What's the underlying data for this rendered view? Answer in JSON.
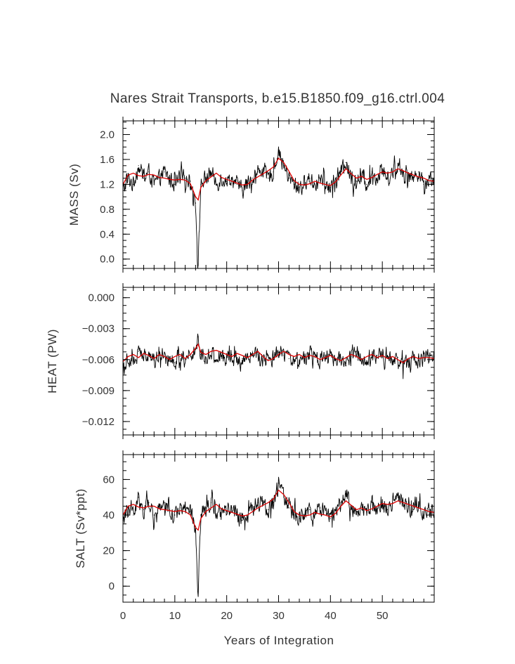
{
  "figure": {
    "title": "Nares Strait Transports, b.e15.B1850.f09_g16.ctrl.004",
    "xlabel": "Years of Integration",
    "colors": {
      "frame": "#000000",
      "raw": "#000000",
      "smooth": "#dd0000",
      "text": "#333333"
    }
  },
  "chart_data": [
    {
      "type": "line",
      "ylabel": "MASS (Sv)",
      "xlim": [
        0,
        60
      ],
      "ylim": [
        -0.15,
        2.22
      ],
      "xticks": [
        0,
        10,
        20,
        30,
        40,
        50
      ],
      "xtick_labels": [
        "0",
        "10",
        "20",
        "30",
        "40",
        "50"
      ],
      "yticks": [
        0.0,
        0.4,
        0.8,
        1.2,
        1.6,
        2.0
      ],
      "ytick_labels": [
        "0.0",
        "0.4",
        "0.8",
        "1.2",
        "1.6",
        "2.0"
      ],
      "series": [
        {
          "style": "monthly",
          "color": "#000000",
          "x": [
            0,
            1,
            2,
            3,
            4,
            5,
            6,
            7,
            8,
            9,
            10,
            11,
            12,
            13,
            14,
            14.5,
            15,
            16,
            17,
            18,
            19,
            20,
            21,
            22,
            23,
            24,
            25,
            26,
            27,
            28,
            29,
            30,
            31,
            32,
            33,
            34,
            35,
            36,
            37,
            38,
            39,
            40,
            41,
            42,
            43,
            44,
            45,
            46,
            47,
            48,
            49,
            50,
            51,
            52,
            53,
            54,
            55,
            56,
            57,
            58,
            59,
            60
          ],
          "y": [
            1.1,
            1.3,
            1.2,
            1.5,
            1.3,
            1.4,
            1.2,
            1.3,
            1.4,
            1.3,
            1.2,
            1.3,
            1.3,
            1.25,
            0.9,
            -0.15,
            1.2,
            1.3,
            1.4,
            1.2,
            1.3,
            1.25,
            1.3,
            1.2,
            1.1,
            1.2,
            1.3,
            1.4,
            1.45,
            1.3,
            1.4,
            1.75,
            1.5,
            1.3,
            1.2,
            1.15,
            1.2,
            1.3,
            1.2,
            1.3,
            1.2,
            1.15,
            1.3,
            1.4,
            1.55,
            1.3,
            1.25,
            1.3,
            1.2,
            1.4,
            1.3,
            1.45,
            1.3,
            1.4,
            1.5,
            1.4,
            1.35,
            1.3,
            1.4,
            1.2,
            1.3,
            1.25
          ]
        },
        {
          "style": "running mean",
          "color": "#dd0000",
          "x": [
            0,
            1,
            2,
            3,
            4,
            5,
            6,
            7,
            8,
            9,
            10,
            11,
            12,
            13,
            14,
            14.5,
            15,
            16,
            17,
            18,
            19,
            20,
            21,
            22,
            23,
            24,
            25,
            26,
            27,
            28,
            29,
            30,
            31,
            32,
            33,
            34,
            35,
            36,
            37,
            38,
            39,
            40,
            41,
            42,
            43,
            44,
            45,
            46,
            47,
            48,
            49,
            50,
            51,
            52,
            53,
            54,
            55,
            56,
            57,
            58,
            59,
            60
          ],
          "y": [
            1.2,
            1.35,
            1.38,
            1.34,
            1.33,
            1.36,
            1.35,
            1.31,
            1.3,
            1.28,
            1.27,
            1.28,
            1.27,
            1.21,
            1.0,
            0.95,
            1.15,
            1.26,
            1.32,
            1.38,
            1.31,
            1.28,
            1.25,
            1.22,
            1.19,
            1.2,
            1.27,
            1.32,
            1.37,
            1.42,
            1.48,
            1.62,
            1.55,
            1.41,
            1.26,
            1.2,
            1.19,
            1.21,
            1.25,
            1.22,
            1.2,
            1.18,
            1.24,
            1.35,
            1.45,
            1.37,
            1.3,
            1.33,
            1.28,
            1.31,
            1.36,
            1.4,
            1.38,
            1.4,
            1.45,
            1.42,
            1.38,
            1.35,
            1.32,
            1.3,
            1.26,
            1.25
          ]
        }
      ]
    },
    {
      "type": "line",
      "ylabel": "HEAT (PW)",
      "xlim": [
        0,
        60
      ],
      "ylim": [
        -0.0133,
        0.001
      ],
      "xticks": [
        0,
        10,
        20,
        30,
        40,
        50
      ],
      "xtick_labels": [
        "0",
        "10",
        "20",
        "30",
        "40",
        "50"
      ],
      "yticks": [
        -0.012,
        -0.009,
        -0.006,
        -0.003,
        0.0
      ],
      "ytick_labels": [
        "−0.012",
        "−0.009",
        "−0.006",
        "−0.003",
        "0.000"
      ],
      "series": [
        {
          "style": "monthly",
          "color": "#000000",
          "x": [
            0,
            1,
            2,
            3,
            4,
            5,
            6,
            7,
            8,
            9,
            10,
            11,
            12,
            13,
            14,
            14.5,
            15,
            16,
            17,
            18,
            19,
            20,
            21,
            22,
            23,
            24,
            25,
            26,
            27,
            28,
            29,
            30,
            31,
            32,
            33,
            34,
            35,
            36,
            37,
            38,
            39,
            40,
            41,
            42,
            43,
            44,
            45,
            46,
            47,
            48,
            49,
            50,
            51,
            52,
            53,
            54,
            55,
            56,
            57,
            58,
            59,
            60
          ],
          "y": [
            -0.0068,
            -0.0057,
            -0.0062,
            -0.0052,
            -0.0058,
            -0.0054,
            -0.0061,
            -0.0056,
            -0.0053,
            -0.0059,
            -0.0063,
            -0.0057,
            -0.006,
            -0.0055,
            -0.005,
            -0.0038,
            -0.0055,
            -0.0058,
            -0.0052,
            -0.006,
            -0.0056,
            -0.0058,
            -0.0055,
            -0.0061,
            -0.0059,
            -0.0057,
            -0.0052,
            -0.0055,
            -0.0061,
            -0.006,
            -0.0058,
            -0.0053,
            -0.0056,
            -0.0059,
            -0.006,
            -0.0062,
            -0.0057,
            -0.0055,
            -0.0058,
            -0.0061,
            -0.0059,
            -0.0056,
            -0.006,
            -0.0058,
            -0.0066,
            -0.0057,
            -0.0052,
            -0.0059,
            -0.0061,
            -0.0058,
            -0.0056,
            -0.0055,
            -0.0059,
            -0.006,
            -0.0058,
            -0.0062,
            -0.0059,
            -0.0057,
            -0.0061,
            -0.0058,
            -0.0056,
            -0.0057
          ]
        },
        {
          "style": "running mean",
          "color": "#dd0000",
          "x": [
            0,
            1,
            2,
            3,
            4,
            5,
            6,
            7,
            8,
            9,
            10,
            11,
            12,
            13,
            14,
            14.5,
            15,
            16,
            17,
            18,
            19,
            20,
            21,
            22,
            23,
            24,
            25,
            26,
            27,
            28,
            29,
            30,
            31,
            32,
            33,
            34,
            35,
            36,
            37,
            38,
            39,
            40,
            41,
            42,
            43,
            44,
            45,
            46,
            47,
            48,
            49,
            50,
            51,
            52,
            53,
            54,
            55,
            56,
            57,
            58,
            59,
            60
          ],
          "y": [
            -0.0062,
            -0.0057,
            -0.0055,
            -0.0058,
            -0.0054,
            -0.0056,
            -0.0059,
            -0.0055,
            -0.0057,
            -0.006,
            -0.0057,
            -0.0055,
            -0.0059,
            -0.0055,
            -0.0049,
            -0.0045,
            -0.0053,
            -0.0055,
            -0.0052,
            -0.0051,
            -0.0053,
            -0.0055,
            -0.0057,
            -0.0054,
            -0.0056,
            -0.0058,
            -0.0055,
            -0.0052,
            -0.0057,
            -0.0061,
            -0.0059,
            -0.0055,
            -0.0052,
            -0.0055,
            -0.0057,
            -0.0055,
            -0.0058,
            -0.0056,
            -0.0057,
            -0.006,
            -0.0058,
            -0.0056,
            -0.0059,
            -0.0061,
            -0.0058,
            -0.0055,
            -0.0057,
            -0.006,
            -0.0057,
            -0.0055,
            -0.0058,
            -0.0056,
            -0.0059,
            -0.0057,
            -0.006,
            -0.0063,
            -0.0059,
            -0.0057,
            -0.0059,
            -0.0058,
            -0.0058,
            -0.0059
          ]
        }
      ]
    },
    {
      "type": "line",
      "ylabel": "SALT (Sv*ppt)",
      "xlim": [
        0,
        60
      ],
      "ylim": [
        -9,
        74
      ],
      "xticks": [
        0,
        10,
        20,
        30,
        40,
        50
      ],
      "xtick_labels": [
        "0",
        "10",
        "20",
        "30",
        "40",
        "50"
      ],
      "yticks": [
        0,
        20,
        40,
        60
      ],
      "ytick_labels": [
        "0",
        "20",
        "40",
        "60"
      ],
      "series": [
        {
          "style": "monthly",
          "color": "#000000",
          "x": [
            0,
            1,
            2,
            3,
            4,
            5,
            6,
            7,
            8,
            9,
            10,
            11,
            12,
            13,
            14,
            14.5,
            15,
            16,
            17,
            18,
            19,
            20,
            21,
            22,
            23,
            24,
            25,
            26,
            27,
            28,
            29,
            30,
            31,
            32,
            33,
            34,
            35,
            36,
            37,
            38,
            39,
            40,
            41,
            42,
            43,
            44,
            45,
            46,
            47,
            48,
            49,
            50,
            51,
            52,
            53,
            54,
            55,
            56,
            57,
            58,
            59,
            60
          ],
          "y": [
            37,
            44,
            40,
            50,
            43,
            47,
            40,
            44,
            47,
            43,
            40,
            44,
            43,
            42,
            30,
            -9,
            40,
            44,
            47,
            40,
            43,
            42,
            44,
            40,
            37,
            40,
            44,
            47,
            48,
            43,
            47,
            58,
            50,
            44,
            40,
            38,
            40,
            43,
            40,
            44,
            40,
            38,
            43,
            47,
            52,
            43,
            42,
            43,
            40,
            47,
            43,
            48,
            43,
            47,
            50,
            47,
            45,
            43,
            47,
            40,
            43,
            42
          ]
        },
        {
          "style": "running mean",
          "color": "#dd0000",
          "x": [
            0,
            1,
            2,
            3,
            4,
            5,
            6,
            7,
            8,
            9,
            10,
            11,
            12,
            13,
            14,
            14.5,
            15,
            16,
            17,
            18,
            19,
            20,
            21,
            22,
            23,
            24,
            25,
            26,
            27,
            28,
            29,
            30,
            31,
            32,
            33,
            34,
            35,
            36,
            37,
            38,
            39,
            40,
            41,
            42,
            43,
            44,
            45,
            46,
            47,
            48,
            49,
            50,
            51,
            52,
            53,
            54,
            55,
            56,
            57,
            58,
            59,
            60
          ],
          "y": [
            40,
            45,
            46,
            44.5,
            44,
            45,
            45,
            43.5,
            43,
            42.5,
            42,
            42.5,
            42,
            40,
            33,
            31.5,
            38,
            42,
            44,
            46,
            43.5,
            42.5,
            41.5,
            40.5,
            39.5,
            40,
            42,
            44,
            45.5,
            47,
            49,
            54,
            51.5,
            47,
            42,
            40,
            39.5,
            40,
            41.5,
            40.5,
            40,
            39,
            41,
            45,
            48,
            45.5,
            43,
            44,
            42.5,
            43.5,
            45,
            46.5,
            46,
            46.5,
            48,
            47,
            46,
            45,
            44,
            43,
            42,
            41.5
          ]
        }
      ]
    }
  ]
}
